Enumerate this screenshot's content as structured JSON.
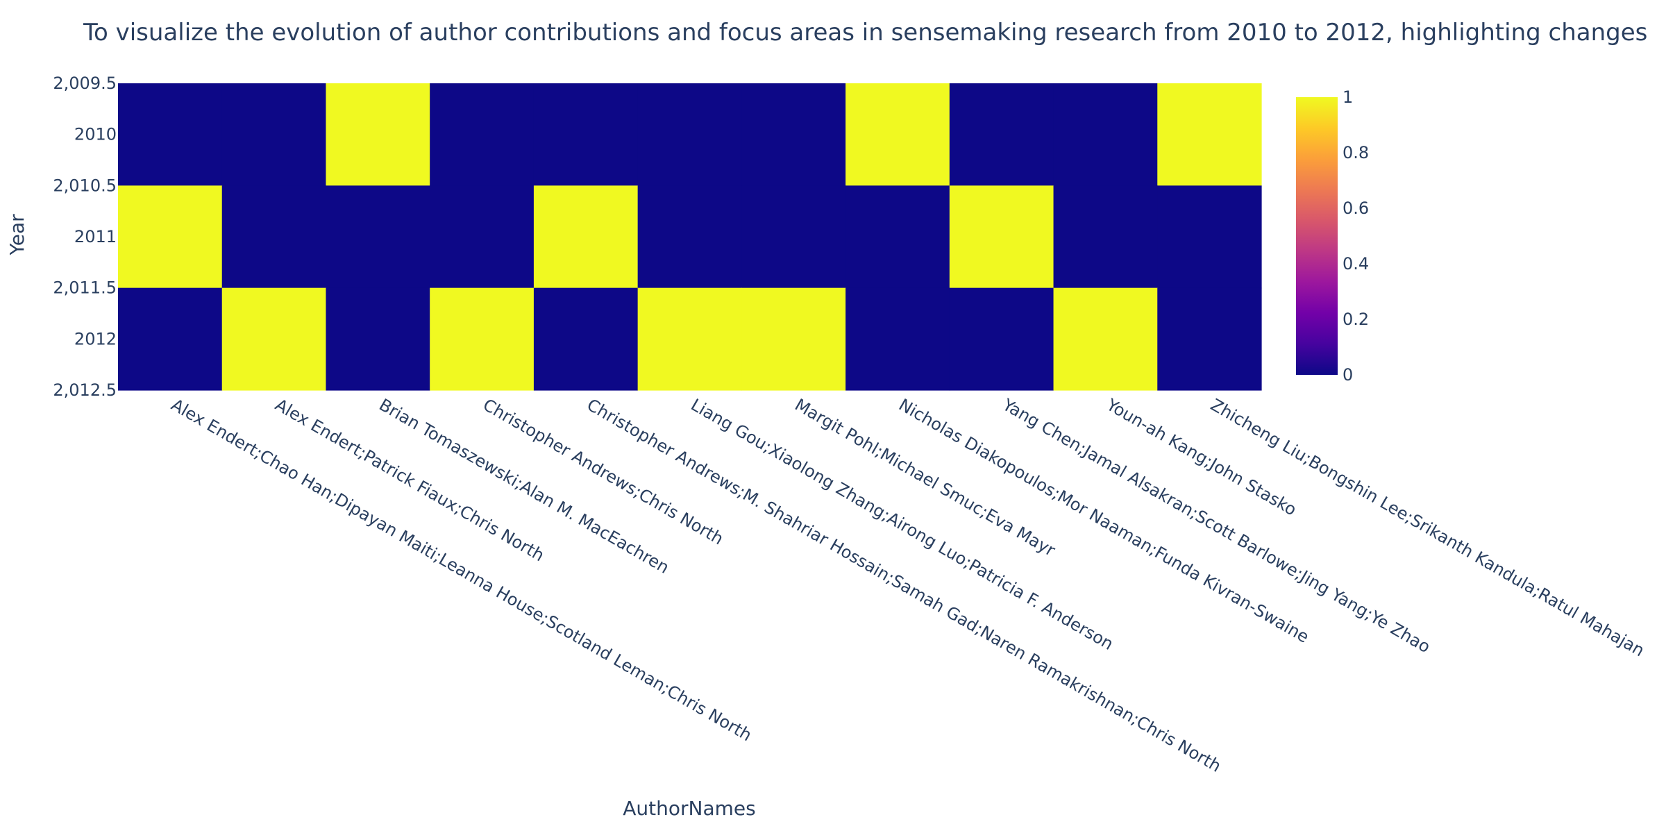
{
  "chart_data": {
    "type": "heatmap",
    "title": "To visualize the evolution of author contributions and focus areas in sensemaking research from 2010 to 2012, highlighting changes",
    "xlabel": "AuthorNames",
    "ylabel": "Year",
    "x_categories": [
      "Alex Endert;Chao Han;Dipayan Maiti;Leanna House;Scotland Leman;Chris North",
      "Alex Endert;Patrick Fiaux;Chris North",
      "Brian Tomaszewski;Alan M. MacEachren",
      "Christopher Andrews;Chris North",
      "Christopher Andrews;M. Shahriar Hossain;Samah Gad;Naren Ramakrishnan;Chris North",
      "Liang Gou;Xiaolong Zhang;Airong Luo;Patricia F. Anderson",
      "Margit Pohl;Michael Smuc;Eva Mayr",
      "Nicholas Diakopoulos;Mor Naaman;Funda Kivran-Swaine",
      "Yang Chen;Jamal Alsakran;Scott Barlowe;Jing Yang;Ye Zhao",
      "Youn-ah Kang;John Stasko",
      "Zhicheng Liu;Bongshin Lee;Srikanth Kandula;Ratul Mahajan"
    ],
    "y_categories": [
      2010,
      2011,
      2012
    ],
    "z": [
      [
        0,
        0,
        1,
        0,
        0,
        0,
        0,
        1,
        0,
        0,
        1
      ],
      [
        1,
        0,
        0,
        0,
        1,
        0,
        0,
        0,
        1,
        0,
        0
      ],
      [
        0,
        1,
        0,
        1,
        0,
        1,
        1,
        0,
        0,
        1,
        0
      ]
    ],
    "ylim": [
      2009.5,
      2012.5
    ],
    "y_tick_labels": [
      "2,009.5",
      "2010",
      "2,010.5",
      "2011",
      "2,011.5",
      "2012",
      "2,012.5"
    ],
    "colorscale": "Plasma",
    "colors": {
      "low": "#0d0887",
      "high": "#f0f921"
    },
    "colorbar": {
      "range": [
        0,
        1
      ],
      "tick_labels": [
        "0",
        "0.2",
        "0.4",
        "0.6",
        "0.8",
        "1"
      ]
    },
    "grid": false,
    "legend": "colorbar-right"
  }
}
